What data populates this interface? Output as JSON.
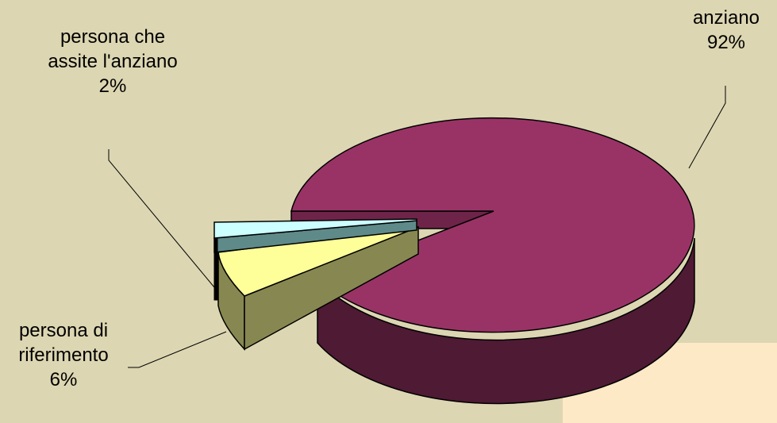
{
  "chart_data": {
    "type": "pie",
    "title": "",
    "slices": [
      {
        "label_lines": [
          "anziano"
        ],
        "percent": "92%",
        "value": 92,
        "color": "#993366"
      },
      {
        "label_lines": [
          "persona di",
          "riferimento"
        ],
        "percent": "6%",
        "value": 6,
        "color": "#ffff99"
      },
      {
        "label_lines": [
          "persona che",
          "assite l'anziano"
        ],
        "percent": "2%",
        "value": 2,
        "color": "#ccffff"
      }
    ],
    "legend": "none",
    "style": "3d-exploded"
  },
  "colors": {
    "background": "#dcd6b2",
    "corner_panel": "#fde9c6"
  }
}
